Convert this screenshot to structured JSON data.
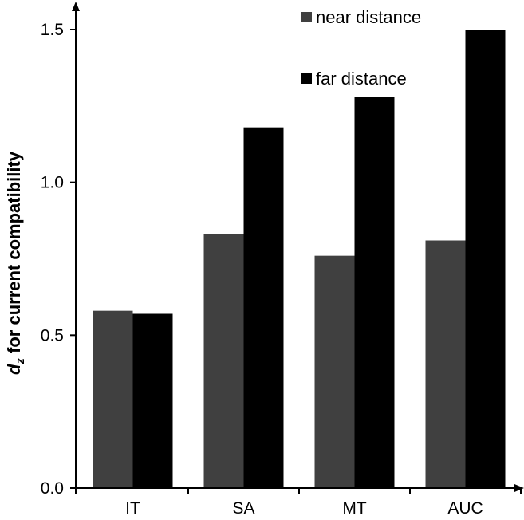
{
  "chart_data": {
    "type": "bar",
    "categories": [
      "IT",
      "SA",
      "MT",
      "AUC"
    ],
    "series": [
      {
        "name": "near distance",
        "color": "#404040",
        "values": [
          0.58,
          0.83,
          0.76,
          0.81
        ]
      },
      {
        "name": "far distance",
        "color": "#000000",
        "values": [
          0.57,
          1.18,
          1.28,
          1.5
        ]
      }
    ],
    "ylabel_main": "d",
    "ylabel_sub": "z",
    "ylabel_rest": " for current compatibility",
    "ylim": [
      0,
      1.5
    ],
    "yticks": [
      "0.0",
      "0.5",
      "1.0",
      "1.5"
    ],
    "grid": false,
    "legend": "top-right"
  }
}
